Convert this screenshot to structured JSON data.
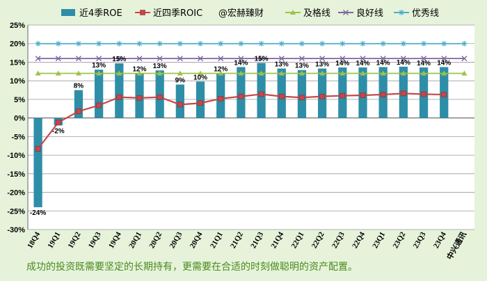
{
  "chart_data": {
    "type": "bar",
    "categories": [
      "18Q4",
      "19Q1",
      "19Q2",
      "19Q3",
      "19Q4",
      "20Q1",
      "20Q2",
      "20Q3",
      "20Q4",
      "21Q1",
      "21Q2",
      "21Q3",
      "21Q4",
      "22Q1",
      "22Q2",
      "22Q3",
      "22Q4",
      "23Q1",
      "23Q2",
      "23Q3",
      "23Q4",
      "中兴通讯"
    ],
    "ylim": [
      -30,
      25
    ],
    "yticks": [
      "-30%",
      "-25%",
      "-20%",
      "-15%",
      "-10%",
      "-5%",
      "0%",
      "5%",
      "10%",
      "15%",
      "20%",
      "25%"
    ],
    "grid": true,
    "legend_position": "top",
    "series": [
      {
        "name": "近4季ROE",
        "kind": "bar",
        "color": "#2e8ea8",
        "values": [
          -24,
          -2,
          7.5,
          13,
          14.7,
          12,
          12.8,
          9,
          9.8,
          12,
          13.7,
          14.8,
          13.3,
          12.9,
          13.3,
          13.6,
          13.6,
          13.7,
          13.8,
          13.6,
          13.7,
          null
        ],
        "labels": [
          "-24%",
          "-2%",
          "8%",
          "13%",
          "15%",
          "12%",
          "13%",
          "9%",
          "10%",
          "12%",
          "14%",
          "15%",
          "13%",
          "13%",
          "13%",
          "14%",
          "14%",
          "14%",
          "14%",
          "14%",
          "14%",
          ""
        ]
      },
      {
        "name": "近四季ROIC",
        "kind": "line",
        "color": "#c84646",
        "marker": "square",
        "values": [
          -8.3,
          -1.2,
          1.8,
          3.4,
          5.6,
          5.4,
          5.6,
          3.6,
          4,
          5.2,
          5.8,
          6.4,
          5.8,
          5.5,
          5.8,
          6,
          6.1,
          6.3,
          6.6,
          6.4,
          6.3,
          null
        ]
      },
      {
        "name": "及格线",
        "kind": "line",
        "color": "#9dc14a",
        "marker": "triangle",
        "values": [
          12,
          12,
          12,
          12,
          12,
          12,
          12,
          12,
          12,
          12,
          12,
          12,
          12,
          12,
          12,
          12,
          12,
          12,
          12,
          12,
          12,
          12
        ]
      },
      {
        "name": "良好线",
        "kind": "line",
        "color": "#8064a2",
        "marker": "x",
        "values": [
          16,
          16,
          16,
          16,
          16,
          16,
          16,
          16,
          16,
          16,
          16,
          16,
          16,
          16,
          16,
          16,
          16,
          16,
          16,
          16,
          16,
          16
        ]
      },
      {
        "name": "优秀线",
        "kind": "line",
        "color": "#4bacc6",
        "marker": "star",
        "values": [
          20,
          20,
          20,
          20,
          20,
          20,
          20,
          20,
          20,
          20,
          20,
          20,
          20,
          20,
          20,
          20,
          20,
          20,
          20,
          20,
          20,
          20
        ]
      }
    ]
  },
  "watermark_legend": "@宏赫臻财",
  "caption": "成功的投资既需要坚定的长期持有，更需要在合适的时刻做聪明的资产配置。",
  "colors": {
    "background": "#e6f3da",
    "plot_background": "#ffffff",
    "caption": "#4b8a1e"
  }
}
